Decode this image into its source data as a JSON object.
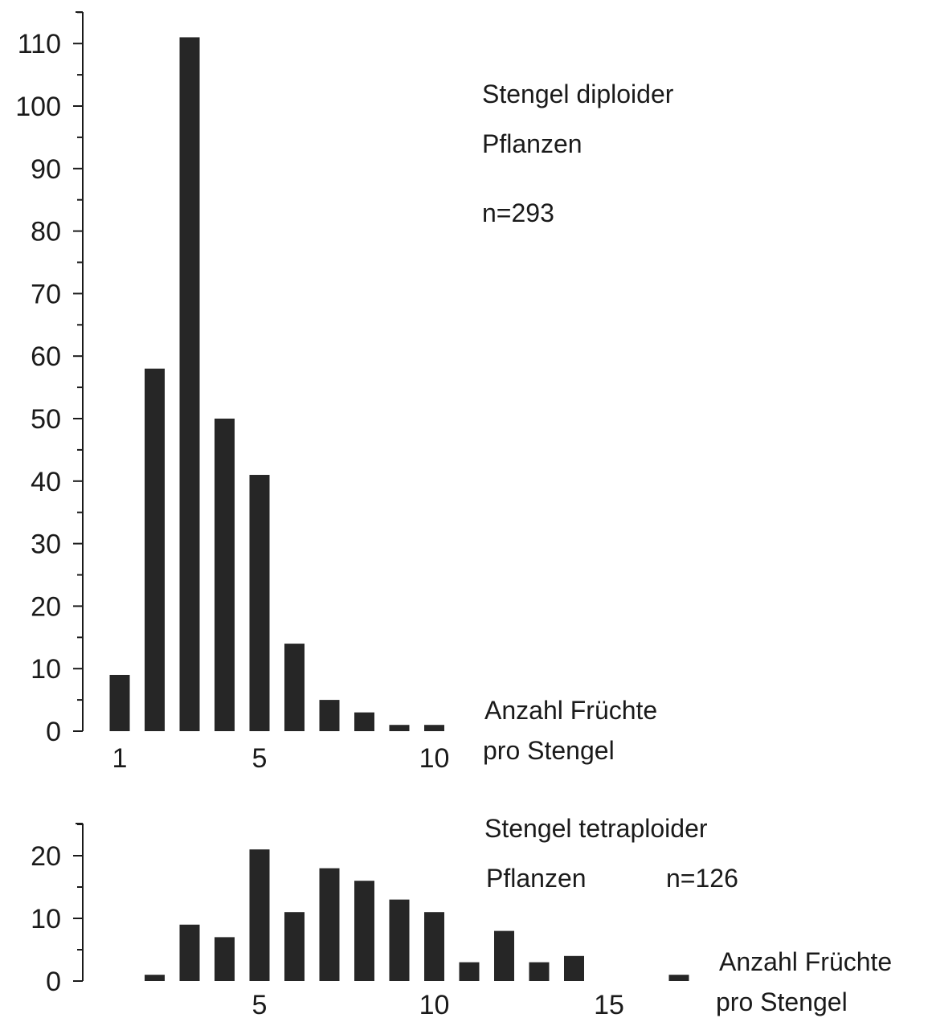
{
  "chart_data": [
    {
      "type": "bar",
      "x": [
        1,
        2,
        3,
        4,
        5,
        6,
        7,
        8,
        9,
        10
      ],
      "values": [
        9,
        58,
        111,
        50,
        41,
        14,
        5,
        3,
        1,
        1
      ],
      "ylim": [
        0,
        115
      ],
      "yticks": [
        "0",
        "10",
        "20",
        "30",
        "40",
        "50",
        "60",
        "70",
        "80",
        "90",
        "100",
        "110"
      ],
      "xticks": [
        "1",
        "5",
        "10"
      ],
      "title_lines": [
        "Stengel diploider",
        "Pflanzen"
      ],
      "n_label": "n=293",
      "xlabel_lines": [
        "Anzahl Früchte",
        "pro Stengel"
      ],
      "bar_color": "#262626",
      "grid": false
    },
    {
      "type": "bar",
      "x": [
        1,
        2,
        3,
        4,
        5,
        6,
        7,
        8,
        9,
        10,
        11,
        12,
        13,
        14,
        15,
        16,
        17
      ],
      "values": [
        0,
        1,
        9,
        7,
        21,
        11,
        18,
        16,
        13,
        11,
        3,
        8,
        3,
        4,
        0,
        0,
        1
      ],
      "ylim": [
        0,
        25
      ],
      "yticks": [
        "0",
        "10",
        "20"
      ],
      "xticks": [
        "5",
        "10",
        "15"
      ],
      "title_lines": [
        "Stengel tetraploider",
        "Pflanzen"
      ],
      "n_label": "n=126",
      "xlabel_lines": [
        "Anzahl Früchte",
        "pro Stengel"
      ],
      "bar_color": "#262626",
      "grid": false
    }
  ]
}
